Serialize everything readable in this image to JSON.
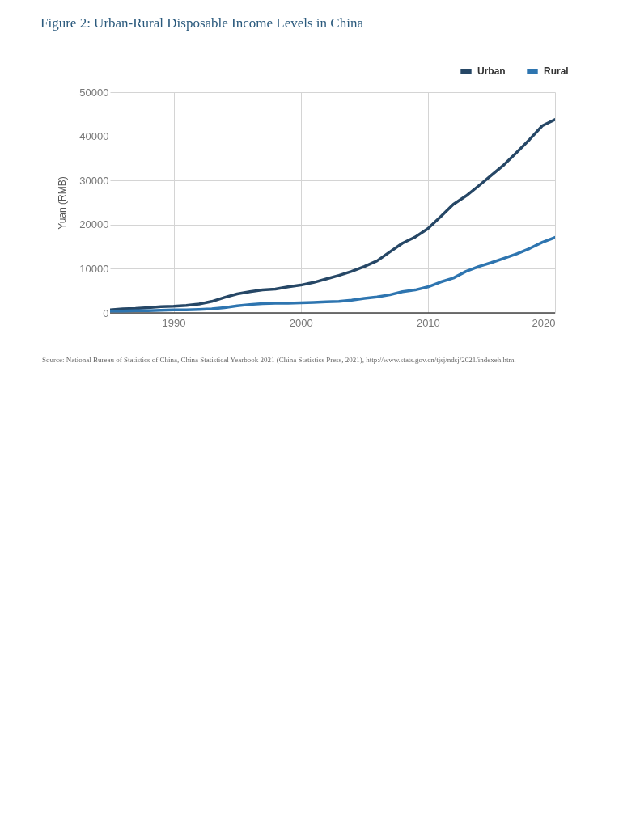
{
  "chart_data": {
    "type": "line",
    "title": "Figure 2: Urban-Rural Disposable Income Levels in China",
    "ylabel": "Yuan (RMB)",
    "x": [
      1985,
      1986,
      1987,
      1988,
      1989,
      1990,
      1991,
      1992,
      1993,
      1994,
      1995,
      1996,
      1997,
      1998,
      1999,
      2000,
      2001,
      2002,
      2003,
      2004,
      2005,
      2006,
      2007,
      2008,
      2009,
      2010,
      2011,
      2012,
      2013,
      2014,
      2015,
      2016,
      2017,
      2018,
      2019,
      2020
    ],
    "series": [
      {
        "name": "Urban",
        "color": "#264766",
        "values": [
          700,
          900,
          1000,
          1200,
          1400,
          1500,
          1700,
          2000,
          2600,
          3500,
          4300,
          4800,
          5200,
          5400,
          5900,
          6300,
          6900,
          7700,
          8500,
          9400,
          10500,
          11800,
          13800,
          15800,
          17200,
          19100,
          21800,
          24600,
          26500,
          28800,
          31200,
          33600,
          36400,
          39300,
          42400,
          43800
        ]
      },
      {
        "name": "Rural",
        "color": "#2e75b0",
        "values": [
          400,
          400,
          500,
          500,
          600,
          700,
          700,
          800,
          900,
          1200,
          1600,
          1900,
          2100,
          2200,
          2200,
          2300,
          2400,
          2500,
          2600,
          2900,
          3300,
          3600,
          4100,
          4800,
          5200,
          5900,
          7000,
          7900,
          9400,
          10500,
          11400,
          12400,
          13400,
          14600,
          16000,
          17100
        ]
      }
    ],
    "xlim": [
      1985,
      2020
    ],
    "xticks": [
      1990,
      2000,
      2010,
      2020
    ],
    "ylim": [
      0,
      50000
    ],
    "yticks": [
      0,
      10000,
      20000,
      30000,
      40000,
      50000
    ],
    "grid": true,
    "legend": "top right",
    "line_style": "solid",
    "marker": "none",
    "annotations": [
      "Source: National Bureau of Statistics of China, China Statistical Yearbook 2021 (China Statistics Press, 2021), http://www.stats.gov.cn/tjsj/ndsj/2021/indexeh.htm."
    ]
  }
}
